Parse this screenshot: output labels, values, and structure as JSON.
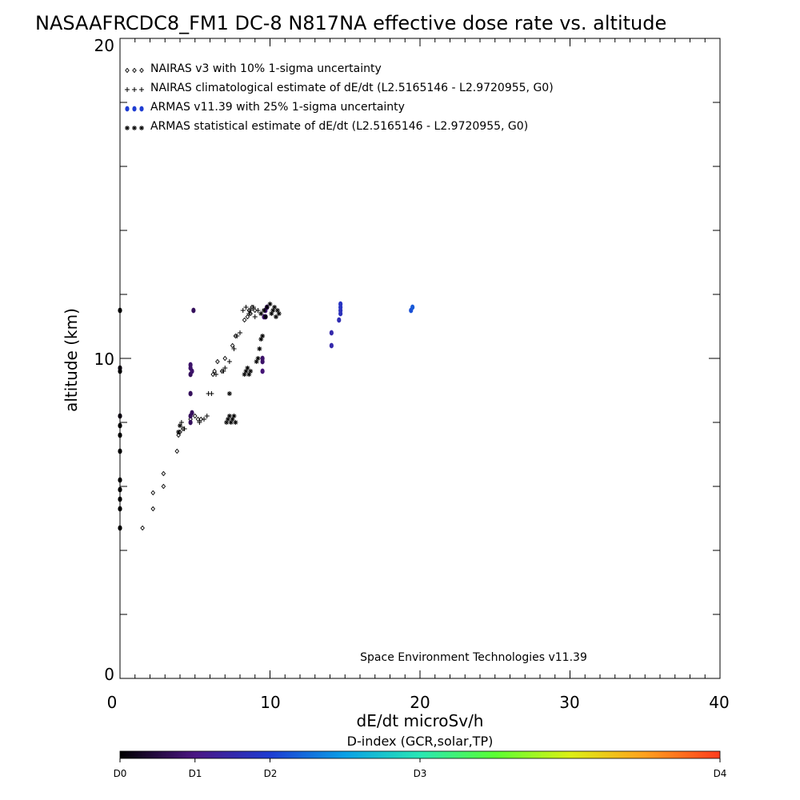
{
  "chart_data": {
    "type": "scatter",
    "title": "NASAAFRCDC8_FM1 DC-8   N817NA effective dose rate vs. altitude",
    "xlabel": "dE/dt microSv/h",
    "ylabel": "altitude (km)",
    "xlim": [
      0,
      40
    ],
    "ylim": [
      0,
      20
    ],
    "x_ticks": [
      "0",
      "10",
      "20",
      "30",
      "40"
    ],
    "y_ticks": [
      "0",
      "10",
      "20"
    ],
    "legend_position": "top-left",
    "annotation": "Space Environment Technologies v11.39",
    "legend": [
      {
        "symbol": "diamond",
        "text": "NAIRAS v3 with 10% 1-sigma uncertainty",
        "color": "#000000"
      },
      {
        "symbol": "plus",
        "text": "NAIRAS climatological estimate of dE/dt (L2.5165146 - L2.9720955, G0)",
        "color": "#000000"
      },
      {
        "symbol": "dot",
        "text": "ARMAS v11.39 with 25% 1-sigma uncertainty",
        "color": "#1e3cd2"
      },
      {
        "symbol": "asterisk",
        "text": "ARMAS statistical estimate of dE/dt (L2.5165146 - L2.9720955, G0)",
        "color": "#000000"
      }
    ],
    "series": [
      {
        "name": "NAIRAS v3 with 10% 1-sigma uncertainty",
        "marker": "diamond",
        "color": "#000000",
        "x": [
          1.5,
          2.2,
          2.2,
          2.9,
          2.9,
          3.8,
          3.9,
          4.0,
          4.2,
          4.7,
          5.0,
          5.2,
          5.4,
          6.2,
          6.3,
          6.5,
          6.8,
          7.0,
          7.5,
          7.7,
          8.3,
          8.5,
          8.6,
          8.7,
          8.8,
          9.0
        ],
        "y": [
          4.7,
          5.3,
          5.8,
          6.0,
          6.4,
          7.1,
          7.6,
          7.7,
          7.8,
          8.1,
          8.2,
          8.1,
          8.1,
          9.5,
          9.6,
          9.9,
          9.6,
          10.0,
          10.4,
          10.7,
          11.2,
          11.3,
          11.5,
          11.4,
          11.6,
          11.5
        ]
      },
      {
        "name": "NAIRAS climatological estimate of dE/dt (L2.5165146 - L2.9720955, G0)",
        "marker": "plus",
        "color": "#000000",
        "x": [
          4.0,
          4.1,
          4.3,
          5.3,
          5.6,
          5.8,
          5.9,
          6.1,
          6.4,
          6.9,
          7.0,
          7.3,
          7.6,
          7.8,
          8.0,
          8.2,
          8.4,
          8.6,
          8.7,
          8.9,
          9.0,
          9.2
        ],
        "y": [
          7.9,
          8.0,
          7.8,
          8.0,
          8.1,
          8.2,
          8.9,
          8.9,
          9.5,
          9.6,
          9.7,
          9.9,
          10.3,
          10.7,
          10.8,
          11.5,
          11.6,
          11.4,
          11.5,
          11.6,
          11.3,
          11.5
        ]
      },
      {
        "name": "ARMAS v11.39 with 25% 1-sigma uncertainty",
        "marker": "dot",
        "x": [
          0.0,
          0.0,
          0.0,
          0.0,
          0.0,
          0.0,
          0.0,
          0.0,
          0.0,
          0.0,
          0.0,
          0.0,
          4.7,
          4.7,
          4.7,
          4.7,
          4.7,
          4.7,
          4.8,
          4.8,
          4.9,
          9.5,
          9.5,
          9.5,
          9.6,
          9.7,
          9.7,
          9.8,
          14.1,
          14.1,
          14.6,
          14.7,
          14.7,
          14.7,
          14.7,
          19.4,
          19.5
        ],
        "y": [
          4.7,
          5.3,
          5.6,
          5.9,
          6.2,
          7.1,
          7.6,
          7.9,
          8.2,
          9.6,
          9.7,
          11.5,
          8.0,
          8.2,
          8.9,
          9.5,
          9.7,
          9.8,
          8.3,
          9.6,
          11.5,
          9.6,
          9.9,
          10.0,
          11.3,
          11.3,
          11.5,
          11.6,
          10.4,
          10.8,
          11.2,
          11.4,
          11.5,
          11.6,
          11.7,
          11.5,
          11.6
        ],
        "colors_d_index": [
          0.0,
          0.0,
          0.0,
          0.0,
          0.0,
          0.0,
          0.0,
          0.0,
          0.1,
          0.0,
          0.1,
          0.0,
          0.7,
          0.7,
          0.7,
          0.7,
          0.8,
          0.8,
          0.7,
          0.8,
          0.7,
          0.9,
          0.8,
          0.8,
          0.9,
          0.9,
          0.9,
          0.9,
          1.5,
          1.5,
          1.6,
          1.7,
          1.7,
          1.8,
          1.8,
          2.2,
          2.3
        ]
      },
      {
        "name": "ARMAS statistical estimate of dE/dt (L2.5165146 - L2.9720955, G0)",
        "marker": "asterisk",
        "color": "#000000",
        "x": [
          3.9,
          4.0,
          7.1,
          7.2,
          7.3,
          7.4,
          7.5,
          7.6,
          7.7,
          7.3,
          8.3,
          8.4,
          8.5,
          8.6,
          8.7,
          9.1,
          9.3,
          9.5,
          9.4,
          9.2,
          9.4,
          9.6,
          9.7,
          9.8,
          10.0,
          10.1,
          10.2,
          10.3,
          10.4,
          10.5,
          10.6
        ],
        "y": [
          7.7,
          7.9,
          8.0,
          8.1,
          8.2,
          8.0,
          8.1,
          8.2,
          8.0,
          8.9,
          9.5,
          9.6,
          9.7,
          9.5,
          9.6,
          9.9,
          10.3,
          10.7,
          10.6,
          10.0,
          11.4,
          11.5,
          11.3,
          11.6,
          11.7,
          11.4,
          11.5,
          11.6,
          11.3,
          11.5,
          11.4
        ]
      }
    ],
    "colorbar": {
      "title": "D-index (GCR,solar,TP)",
      "labels": [
        "D0",
        "D1",
        "D2",
        "D3",
        "D4"
      ],
      "label_values": [
        0,
        1,
        2,
        4,
        8
      ],
      "range": [
        0,
        8
      ],
      "stops": [
        "#000000",
        "#4b1683",
        "#1e3cd2",
        "#0aa0e6",
        "#28e6b4",
        "#5aff32",
        "#dcf014",
        "#ffa01e",
        "#ff3c1e"
      ]
    }
  }
}
